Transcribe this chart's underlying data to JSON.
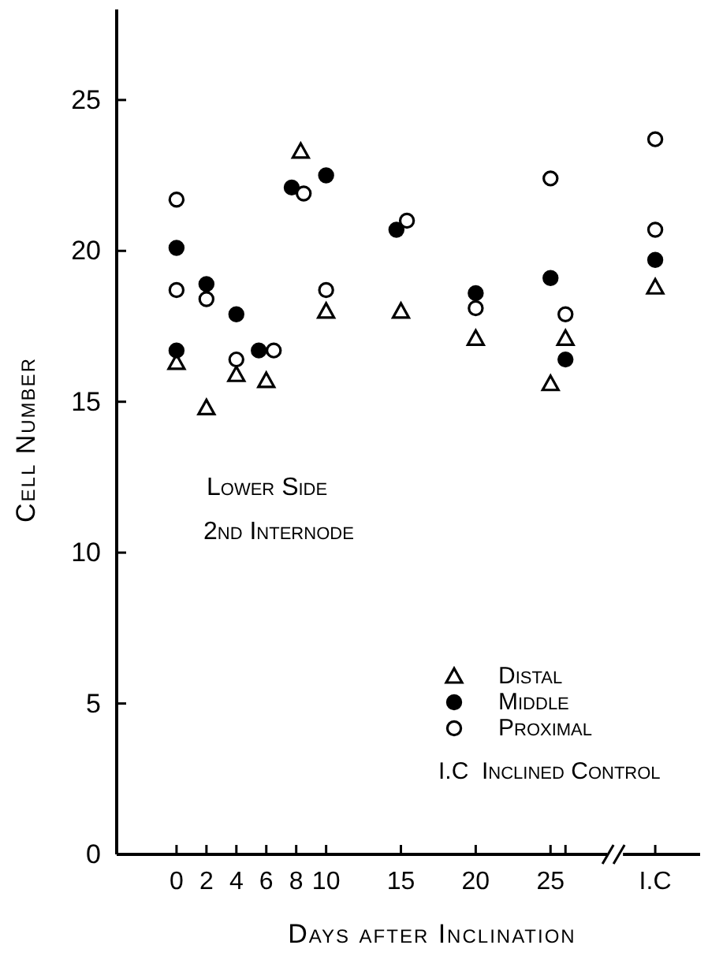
{
  "chart_data": {
    "type": "scatter",
    "xlabel": "Days after Inclination",
    "ylabel": "Cell Number",
    "xlim": [
      -4,
      35
    ],
    "ylim": [
      0,
      28
    ],
    "xticks": [
      0,
      2,
      4,
      6,
      8,
      10,
      15,
      20,
      25,
      {
        "value": 26,
        "label": null
      },
      {
        "value": 32,
        "label": "I.C"
      }
    ],
    "yticks": [
      0,
      5,
      10,
      15,
      20,
      25
    ],
    "legend": "bottom right",
    "grid": false,
    "annotations": [
      "Lower Side",
      "2nd Internode",
      "I.C  Inclined Control"
    ],
    "series": [
      {
        "name": "Distal",
        "color": "#000000",
        "marker": "triangle",
        "x": [
          0,
          2,
          4,
          6,
          8.3,
          10,
          15,
          20,
          25,
          26,
          32
        ],
        "values": [
          16.3,
          14.8,
          15.9,
          15.7,
          23.3,
          18.0,
          18.0,
          17.1,
          15.6,
          17.1,
          18.8
        ]
      },
      {
        "name": "Middle",
        "color": "#000000",
        "marker": "circle",
        "x": [
          0,
          0,
          2,
          4,
          5.5,
          7.7,
          10,
          14.7,
          20,
          25,
          26,
          32
        ],
        "values": [
          20.1,
          16.7,
          18.9,
          17.9,
          16.7,
          22.1,
          22.5,
          20.7,
          18.6,
          19.1,
          16.4,
          19.7
        ]
      },
      {
        "name": "Proximal",
        "color": "#000000",
        "marker": "circle",
        "x": [
          0,
          0,
          2,
          4,
          6.5,
          8.5,
          10,
          15.4,
          20,
          25,
          26,
          32,
          32
        ],
        "values": [
          21.7,
          18.7,
          18.4,
          16.4,
          16.7,
          21.9,
          18.7,
          21.0,
          18.1,
          22.4,
          17.9,
          23.7,
          20.7
        ]
      }
    ]
  }
}
